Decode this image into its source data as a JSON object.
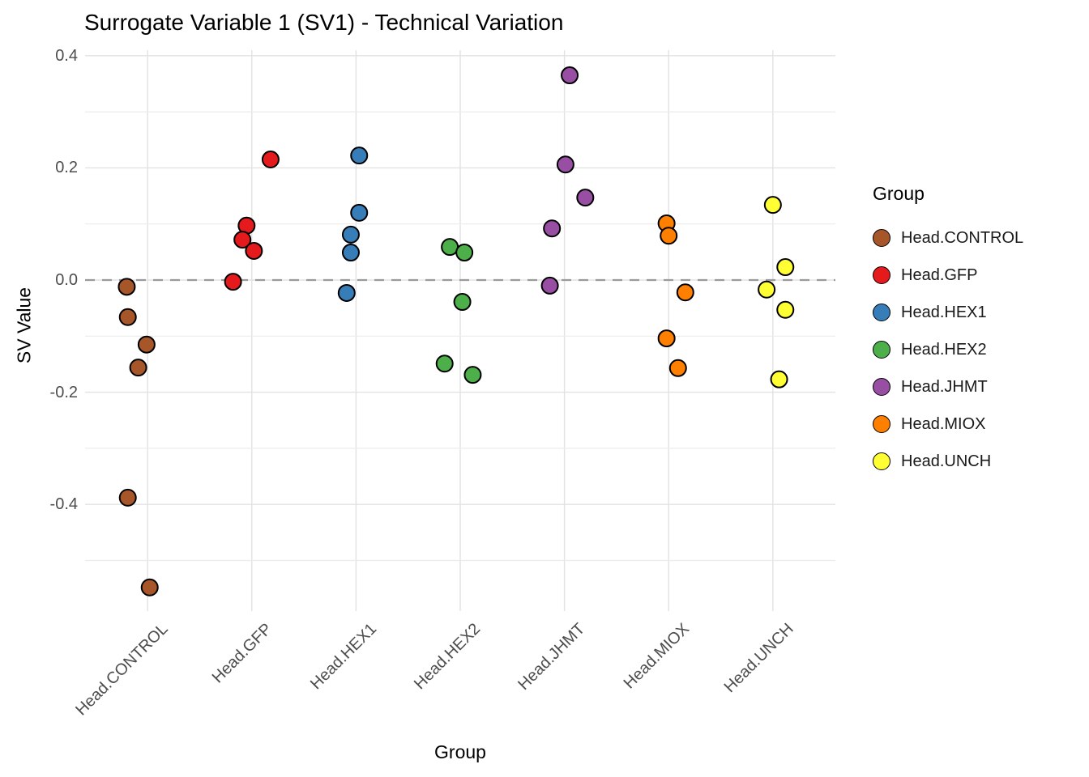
{
  "chart_data": {
    "type": "scatter",
    "title": "Surrogate Variable 1 (SV1) - Technical Variation",
    "xlabel": "Group",
    "ylabel": "SV Value",
    "categories": [
      "Head.CONTROL",
      "Head.GFP",
      "Head.HEX1",
      "Head.HEX2",
      "Head.JHMT",
      "Head.MIOX",
      "Head.UNCH"
    ],
    "y_ticks": [
      {
        "label": "0.4",
        "value": 0.4
      },
      {
        "label": "0.2",
        "value": 0.2
      },
      {
        "label": "0.0",
        "value": 0.0
      },
      {
        "label": "-0.2",
        "value": -0.2
      },
      {
        "label": "-0.4",
        "value": -0.4
      }
    ],
    "gridline_values": [
      0.4,
      0.3,
      0.2,
      0.1,
      0.0,
      -0.1,
      -0.2,
      -0.3,
      -0.4,
      -0.5
    ],
    "ylim": [
      -0.59,
      0.41
    ],
    "grid": true,
    "zero_line": {
      "value": 0.0,
      "style": "dashed",
      "color": "#9a9a9a"
    },
    "legend": {
      "title": "Group",
      "position": "right"
    },
    "colors": {
      "gridline_major": "#e2e2e2",
      "gridline_minor": "#ececec",
      "point_stroke": "#000000",
      "background": "#ffffff"
    },
    "point_style": {
      "radius": 10,
      "stroke_width": 2
    },
    "series": [
      {
        "name": "Head.CONTROL",
        "color": "#A65628",
        "points": [
          {
            "value": -0.012,
            "jitter": -0.2
          },
          {
            "value": -0.066,
            "jitter": -0.19
          },
          {
            "value": -0.115,
            "jitter": -0.01
          },
          {
            "value": -0.156,
            "jitter": -0.09
          },
          {
            "value": -0.388,
            "jitter": -0.19
          },
          {
            "value": -0.548,
            "jitter": 0.02
          }
        ]
      },
      {
        "name": "Head.GFP",
        "color": "#E41A1C",
        "points": [
          {
            "value": 0.215,
            "jitter": 0.18
          },
          {
            "value": 0.097,
            "jitter": -0.05
          },
          {
            "value": 0.072,
            "jitter": -0.09
          },
          {
            "value": 0.052,
            "jitter": 0.02
          },
          {
            "value": -0.003,
            "jitter": -0.18
          }
        ]
      },
      {
        "name": "Head.HEX1",
        "color": "#377EB8",
        "points": [
          {
            "value": 0.222,
            "jitter": 0.03
          },
          {
            "value": 0.12,
            "jitter": 0.03
          },
          {
            "value": 0.081,
            "jitter": -0.05
          },
          {
            "value": 0.049,
            "jitter": -0.05
          },
          {
            "value": -0.023,
            "jitter": -0.09
          }
        ]
      },
      {
        "name": "Head.HEX2",
        "color": "#4DAF4A",
        "points": [
          {
            "value": 0.059,
            "jitter": -0.1
          },
          {
            "value": 0.049,
            "jitter": 0.04
          },
          {
            "value": -0.039,
            "jitter": 0.02
          },
          {
            "value": -0.149,
            "jitter": -0.15
          },
          {
            "value": -0.169,
            "jitter": 0.12
          }
        ]
      },
      {
        "name": "Head.JHMT",
        "color": "#984EA3",
        "points": [
          {
            "value": 0.365,
            "jitter": 0.05
          },
          {
            "value": 0.206,
            "jitter": 0.01
          },
          {
            "value": 0.147,
            "jitter": 0.2
          },
          {
            "value": 0.092,
            "jitter": -0.12
          },
          {
            "value": -0.01,
            "jitter": -0.14
          }
        ]
      },
      {
        "name": "Head.MIOX",
        "color": "#FF7F00",
        "points": [
          {
            "value": 0.101,
            "jitter": -0.02
          },
          {
            "value": 0.079,
            "jitter": 0.0
          },
          {
            "value": -0.022,
            "jitter": 0.16
          },
          {
            "value": -0.104,
            "jitter": -0.02
          },
          {
            "value": -0.157,
            "jitter": 0.09
          }
        ]
      },
      {
        "name": "Head.UNCH",
        "color": "#FFFF33",
        "points": [
          {
            "value": 0.134,
            "jitter": 0.0
          },
          {
            "value": 0.023,
            "jitter": 0.12
          },
          {
            "value": -0.017,
            "jitter": -0.06
          },
          {
            "value": -0.053,
            "jitter": 0.12
          },
          {
            "value": -0.177,
            "jitter": 0.06
          }
        ]
      }
    ]
  }
}
